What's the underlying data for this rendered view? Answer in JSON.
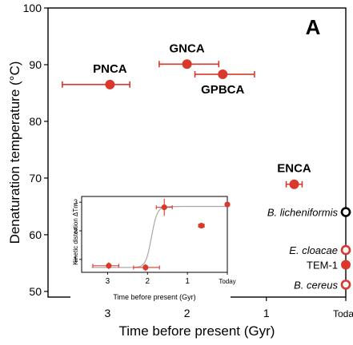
{
  "colors": {
    "accent": "#d9382b",
    "axis": "#000000",
    "curve": "#a8a8a8",
    "background": "#ffffff"
  },
  "chart_data": [
    {
      "type": "scatter",
      "panel_label": "A",
      "xlabel": "Time before present (Gyr)",
      "ylabel": "Denaturation temperature (°C)",
      "xlim": [
        3.75,
        0
      ],
      "ylim": [
        49,
        100
      ],
      "x_ticks": [
        {
          "value": 3,
          "label": "3"
        },
        {
          "value": 2,
          "label": "2"
        },
        {
          "value": 1,
          "label": "1"
        },
        {
          "value": 0,
          "label": "Today"
        }
      ],
      "y_ticks": [
        50,
        60,
        70,
        80,
        90,
        100
      ],
      "points": [
        {
          "label": "PNCA",
          "x": 2.97,
          "y": 86.5,
          "xerr": [
            0.6,
            0.25
          ],
          "style": "filled",
          "label_pos": "above"
        },
        {
          "label": "GNCA",
          "x": 2.0,
          "y": 90.1,
          "xerr": [
            0.35,
            0.4
          ],
          "style": "filled",
          "label_pos": "above"
        },
        {
          "label": "GPBCA",
          "x": 1.55,
          "y": 88.3,
          "xerr": [
            0.35,
            0.4
          ],
          "style": "filled",
          "label_pos": "below"
        },
        {
          "label": "ENCA",
          "x": 0.65,
          "y": 68.9,
          "xerr": [
            0.1,
            0.1
          ],
          "style": "filled",
          "label_pos": "above"
        },
        {
          "label": "B. licheniformis",
          "x": 0.0,
          "y": 64.0,
          "style": "open_black",
          "label_pos": "left",
          "italic": true
        },
        {
          "label": "E. cloacae",
          "x": 0.0,
          "y": 57.3,
          "style": "open",
          "label_pos": "left",
          "italic": true
        },
        {
          "label": "TEM-1",
          "x": 0.0,
          "y": 54.7,
          "style": "filled",
          "label_pos": "left"
        },
        {
          "label": "B. cereus",
          "x": 0.0,
          "y": 51.2,
          "style": "open",
          "label_pos": "left",
          "italic": true
        }
      ]
    },
    {
      "type": "scatter",
      "inset": true,
      "xlabel": "Time before present (Gyr)",
      "ylabel": "Kinetic distortion ΔTm",
      "xlim": [
        3.65,
        0
      ],
      "ylim": [
        0.55,
        3.2
      ],
      "x_ticks": [
        {
          "value": 3,
          "label": "3"
        },
        {
          "value": 2,
          "label": "2"
        },
        {
          "value": 1,
          "label": "1"
        },
        {
          "value": 0,
          "label": "Today"
        }
      ],
      "y_ticks": [
        1,
        2,
        3
      ],
      "points": [
        {
          "x": 2.97,
          "y": 0.78,
          "xerr": [
            0.4,
            0.25
          ],
          "yerr": 0.12
        },
        {
          "x": 2.05,
          "y": 0.72,
          "xerr": [
            0.3,
            0.35
          ],
          "yerr": 0.12
        },
        {
          "x": 1.58,
          "y": 2.82,
          "xerr": [
            0.2,
            0.2
          ],
          "yerr": 0.3
        },
        {
          "x": 0.65,
          "y": 2.18,
          "xerr": [
            0.07,
            0.07
          ],
          "yerr": 0.05
        },
        {
          "x": 0.0,
          "y": 2.92,
          "yerr": 0.08
        }
      ],
      "fit_curve": {
        "low": 0.72,
        "high": 2.85,
        "midpoint": 1.9,
        "steepness": 14,
        "x_range": [
          3.4,
          0
        ]
      }
    }
  ]
}
